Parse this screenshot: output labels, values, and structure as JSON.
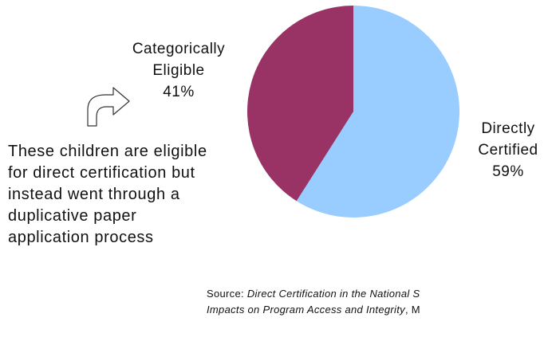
{
  "chart_data": {
    "type": "pie",
    "title": "",
    "slices": [
      {
        "label": "Directly Certified",
        "label_lines": [
          "Directly",
          "Certified"
        ],
        "value": 59,
        "value_label": "59%",
        "color": "#99ccff"
      },
      {
        "label": "Categorically Eligible",
        "label_lines": [
          "Categorically",
          "Eligible"
        ],
        "value": 41,
        "value_label": "41%",
        "color": "#993366"
      }
    ]
  },
  "annotation": {
    "icon": "curved-arrow-icon",
    "text": "These children are eligible for direct certification but instead went through a duplicative paper application process"
  },
  "source": {
    "prefix": "Source: ",
    "line1_italic": "Direct Certification in the National S",
    "line2_italic": "Impacts on Program Access and Integrity",
    "line2_tail": ", M"
  }
}
